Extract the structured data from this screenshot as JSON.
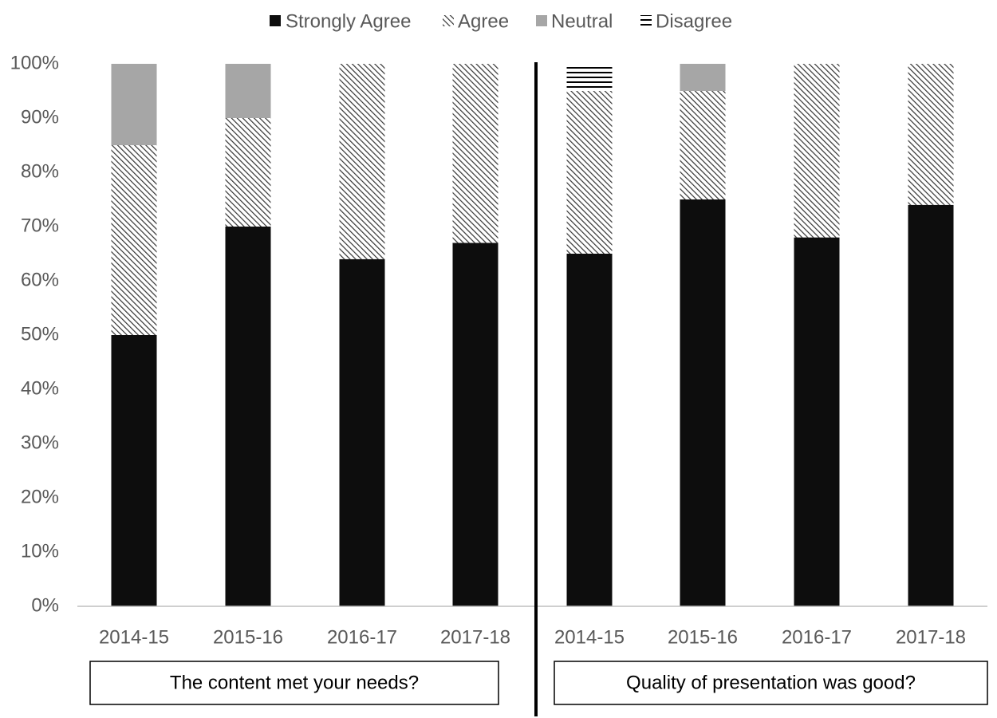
{
  "chart_data": {
    "type": "bar",
    "stacked": true,
    "percent_axis": true,
    "legend": {
      "placement": "top",
      "entries": [
        "Strongly Agree",
        "Agree",
        "Neutral",
        "Disagree"
      ]
    },
    "y_ticks": [
      "0%",
      "10%",
      "20%",
      "30%",
      "40%",
      "50%",
      "60%",
      "70%",
      "80%",
      "90%",
      "100%"
    ],
    "ylim": [
      0,
      100
    ],
    "grid": false,
    "panels": [
      {
        "label": "The content met your needs?",
        "categories": [
          "2014-15",
          "2015-16",
          "2016-17",
          "2017-18"
        ],
        "series": [
          {
            "name": "Strongly Agree",
            "values": [
              50,
              70,
              64,
              67
            ]
          },
          {
            "name": "Agree",
            "values": [
              35,
              20,
              36,
              33
            ]
          },
          {
            "name": "Neutral",
            "values": [
              15,
              10,
              0,
              0
            ]
          },
          {
            "name": "Disagree",
            "values": [
              0,
              0,
              0,
              0
            ]
          }
        ]
      },
      {
        "label": "Quality of presentation was good?",
        "categories": [
          "2014-15",
          "2015-16",
          "2016-17",
          "2017-18"
        ],
        "series": [
          {
            "name": "Strongly Agree",
            "values": [
              65,
              75,
              68,
              74
            ]
          },
          {
            "name": "Agree",
            "values": [
              30,
              20,
              32,
              26
            ]
          },
          {
            "name": "Neutral",
            "values": [
              0,
              5,
              0,
              0
            ]
          },
          {
            "name": "Disagree",
            "values": [
              5,
              0,
              0,
              0
            ]
          }
        ]
      }
    ]
  },
  "style": {
    "colors": {
      "strongly_agree": "#0d0d0d",
      "agree_hatch": "#333333",
      "neutral": "#a6a6a6",
      "disagree_lines": "#000000",
      "axis": "#bfbfbf",
      "divider": "#000000",
      "text": "#595959"
    }
  }
}
